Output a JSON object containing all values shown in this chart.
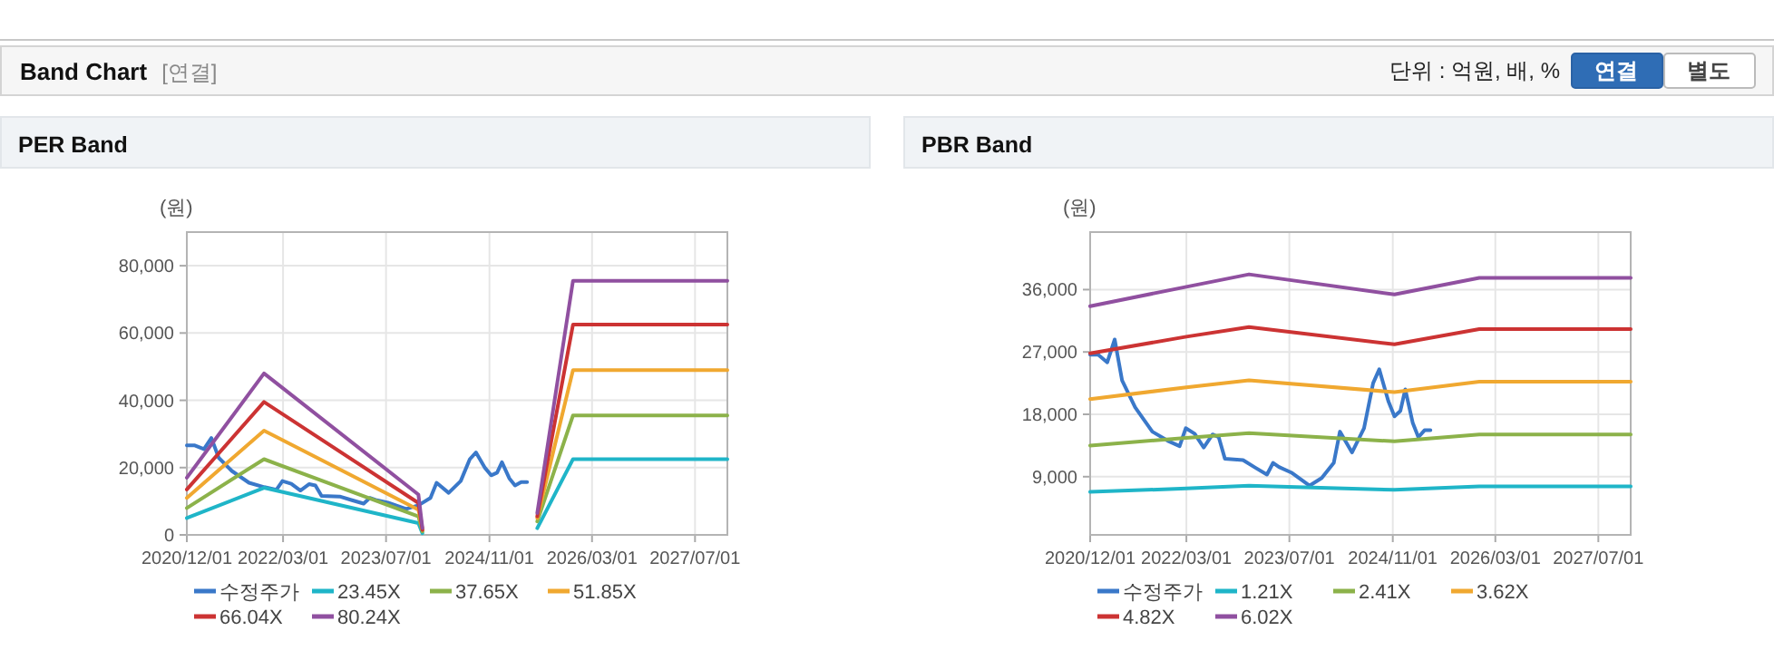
{
  "chart_data": [
    {
      "type": "other",
      "title": "Band Chart",
      "subtitle": "[연결]",
      "annotations": [
        "단위 : 억원, 배, %",
        "연결",
        "별도"
      ]
    },
    {
      "type": "line",
      "title": "PER Band",
      "ylabel": "(원)",
      "xlim": [
        "2020-12-01",
        "2027-12-01"
      ],
      "ylim": [
        0,
        90000
      ],
      "xticks": [
        {
          "value": "2020-12-01",
          "label": "2020/12/01"
        },
        {
          "value": "2022-03-01",
          "label": "2022/03/01"
        },
        {
          "value": "2023-07-01",
          "label": "2023/07/01"
        },
        {
          "value": "2024-11-01",
          "label": "2024/11/01"
        },
        {
          "value": "2026-03-01",
          "label": "2026/03/01"
        },
        {
          "value": "2027-07-01",
          "label": "2027/07/01"
        }
      ],
      "yticks": [
        0,
        {
          "value": 20000,
          "label": "20,000"
        },
        {
          "value": 40000,
          "label": "40,000"
        },
        {
          "value": 60000,
          "label": "60,000"
        },
        {
          "value": 80000,
          "label": "80,000"
        }
      ],
      "grid": true,
      "legend": "bottom",
      "series": [
        {
          "name": "수정주가",
          "color": "#3a78c9",
          "x": [
            "2020-12-01",
            "2021-01-08",
            "2021-02-20",
            "2021-03-27",
            "2021-05-01",
            "2021-07-02",
            "2021-09-21",
            "2021-12-02",
            "2022-01-28",
            "2022-02-26",
            "2022-04-09",
            "2022-05-22",
            "2022-07-03",
            "2022-08-01",
            "2022-08-30",
            "2022-11-24",
            "2023-01-21",
            "2023-03-17",
            "2023-04-15",
            "2023-05-13",
            "2023-07-10",
            "2023-10-04",
            "2023-12-01",
            "2024-01-27",
            "2024-02-25",
            "2024-04-22",
            "2024-06-18",
            "2024-07-31",
            "2024-08-29",
            "2024-10-11",
            "2024-11-09",
            "2024-12-07",
            "2024-12-30",
            "2025-02-03",
            "2025-03-02",
            "2025-03-31",
            "2025-04-28"
          ],
          "values": [
            26600,
            26600,
            25500,
            28800,
            22900,
            19000,
            15500,
            14200,
            13400,
            16000,
            15200,
            13200,
            15100,
            14700,
            11600,
            11400,
            10300,
            9300,
            11000,
            10400,
            9600,
            7700,
            8800,
            11000,
            15500,
            12500,
            16000,
            22500,
            24500,
            19900,
            17700,
            18500,
            21600,
            16800,
            14700,
            15700,
            15700
          ]
        },
        {
          "name": "23.45X",
          "color": "#1fb5c8",
          "x": [
            "2020-12-01",
            "2021-12-01",
            "2023-12-01",
            "2023-12-20",
            "2024-06-01",
            "2025-06-15",
            "2025-12-01",
            "2027-12-01"
          ],
          "values": [
            5000,
            14000,
            3500,
            500,
            null,
            2000,
            22500,
            22500
          ]
        },
        {
          "name": "37.65X",
          "color": "#8cb24a",
          "x": [
            "2020-12-01",
            "2021-12-01",
            "2023-12-01",
            "2023-12-20",
            "2024-06-01",
            "2025-06-15",
            "2025-12-01",
            "2027-12-01"
          ],
          "values": [
            8000,
            22500,
            5500,
            1000,
            null,
            4000,
            35500,
            35500
          ]
        },
        {
          "name": "51.85X",
          "color": "#f0a830",
          "x": [
            "2020-12-01",
            "2021-12-01",
            "2023-12-01",
            "2023-12-20",
            "2024-06-01",
            "2025-06-15",
            "2025-12-01",
            "2027-12-01"
          ],
          "values": [
            11000,
            31000,
            7500,
            1500,
            null,
            5000,
            49000,
            49000
          ]
        },
        {
          "name": "66.04X",
          "color": "#cc3333",
          "x": [
            "2020-12-01",
            "2021-12-01",
            "2023-12-01",
            "2023-12-20",
            "2024-06-01",
            "2025-06-15",
            "2025-12-01",
            "2027-12-01"
          ],
          "values": [
            13500,
            39500,
            9500,
            1500,
            null,
            5500,
            62500,
            62500
          ]
        },
        {
          "name": "80.24X",
          "color": "#9050a0",
          "x": [
            "2020-12-01",
            "2021-12-01",
            "2023-12-01",
            "2023-12-20",
            "2024-06-01",
            "2025-06-15",
            "2025-12-01",
            "2027-12-01"
          ],
          "values": [
            17000,
            48000,
            12000,
            2000,
            null,
            6500,
            75500,
            75500
          ]
        }
      ]
    },
    {
      "type": "line",
      "title": "PBR Band",
      "ylabel": "(원)",
      "xlim": [
        "2020-12-01",
        "2027-12-01"
      ],
      "ylim": [
        600,
        44300
      ],
      "xticks": [
        {
          "value": "2020-12-01",
          "label": "2020/12/01"
        },
        {
          "value": "2022-03-01",
          "label": "2022/03/01"
        },
        {
          "value": "2023-07-01",
          "label": "2023/07/01"
        },
        {
          "value": "2024-11-01",
          "label": "2024/11/01"
        },
        {
          "value": "2026-03-01",
          "label": "2026/03/01"
        },
        {
          "value": "2027-07-01",
          "label": "2027/07/01"
        }
      ],
      "yticks": [
        {
          "value": 9000,
          "label": "9,000"
        },
        {
          "value": 18000,
          "label": "18,000"
        },
        {
          "value": 27000,
          "label": "27,000"
        },
        {
          "value": 36000,
          "label": "36,000"
        }
      ],
      "grid": true,
      "legend": "bottom",
      "series": [
        {
          "name": "수정주가",
          "color": "#3a78c9",
          "x": [
            "2020-12-01",
            "2021-01-08",
            "2021-02-20",
            "2021-03-27",
            "2021-05-01",
            "2021-07-02",
            "2021-09-21",
            "2021-12-02",
            "2022-01-28",
            "2022-02-26",
            "2022-04-09",
            "2022-05-22",
            "2022-07-03",
            "2022-08-01",
            "2022-08-30",
            "2022-11-24",
            "2023-01-21",
            "2023-03-17",
            "2023-04-15",
            "2023-05-13",
            "2023-07-10",
            "2023-10-04",
            "2023-12-01",
            "2024-01-27",
            "2024-02-25",
            "2024-04-22",
            "2024-06-18",
            "2024-07-31",
            "2024-08-29",
            "2024-10-11",
            "2024-11-09",
            "2024-12-07",
            "2024-12-30",
            "2025-02-03",
            "2025-03-02",
            "2025-03-31",
            "2025-04-28"
          ],
          "values": [
            26600,
            26600,
            25500,
            28800,
            22900,
            19000,
            15500,
            14200,
            13400,
            16000,
            15200,
            13200,
            15100,
            14700,
            11600,
            11400,
            10300,
            9300,
            11000,
            10400,
            9600,
            7700,
            8800,
            11000,
            15500,
            12500,
            16000,
            22500,
            24500,
            19900,
            17700,
            18500,
            21600,
            16800,
            14700,
            15700,
            15700
          ]
        },
        {
          "name": "1.21X",
          "color": "#1fb5c8",
          "x": [
            "2020-12-01",
            "2022-03-01",
            "2022-12-22",
            "2024-11-09",
            "2025-12-15",
            "2027-12-01"
          ],
          "values": [
            6800,
            7300,
            7700,
            7100,
            7600,
            7600
          ]
        },
        {
          "name": "2.41X",
          "color": "#8cb24a",
          "x": [
            "2020-12-01",
            "2022-03-01",
            "2022-12-22",
            "2024-11-09",
            "2025-12-15",
            "2027-12-01"
          ],
          "values": [
            13500,
            14600,
            15300,
            14100,
            15100,
            15100
          ]
        },
        {
          "name": "3.62X",
          "color": "#f0a830",
          "x": [
            "2020-12-01",
            "2022-03-01",
            "2022-12-22",
            "2024-11-09",
            "2025-12-15",
            "2027-12-01"
          ],
          "values": [
            20200,
            21900,
            22900,
            21200,
            22700,
            22700
          ]
        },
        {
          "name": "4.82X",
          "color": "#cc3333",
          "x": [
            "2020-12-01",
            "2022-03-01",
            "2022-12-22",
            "2024-11-09",
            "2025-12-15",
            "2027-12-01"
          ],
          "values": [
            26800,
            29200,
            30600,
            28100,
            30300,
            30300
          ]
        },
        {
          "name": "6.02X",
          "color": "#9050a0",
          "x": [
            "2020-12-01",
            "2022-03-01",
            "2022-12-22",
            "2024-11-09",
            "2025-12-15",
            "2027-12-01"
          ],
          "values": [
            33600,
            36400,
            38200,
            35300,
            37700,
            37700
          ]
        }
      ]
    }
  ]
}
